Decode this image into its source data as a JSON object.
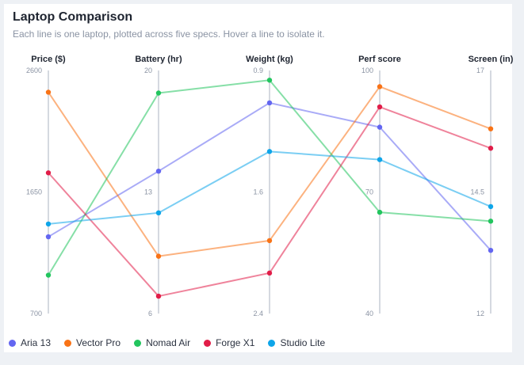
{
  "header": {
    "title": "Laptop Comparison",
    "subtitle": "Each line is one laptop, plotted across five specs. Hover a line to isolate it."
  },
  "chart_data": {
    "type": "parallel-coordinates",
    "axes": [
      {
        "label": "Price ($)",
        "range": [
          700,
          2600
        ],
        "ticks": [
          "2600",
          "1650",
          "700"
        ],
        "inverted": false
      },
      {
        "label": "Battery (hr)",
        "range": [
          6,
          20
        ],
        "ticks": [
          "20",
          "13",
          "6"
        ],
        "inverted": false
      },
      {
        "label": "Weight (kg)",
        "range": [
          2.4,
          0.9
        ],
        "ticks": [
          "0.9",
          "1.6",
          "2.4"
        ],
        "inverted": true
      },
      {
        "label": "Perf score",
        "range": [
          40,
          100
        ],
        "ticks": [
          "100",
          "70",
          "40"
        ],
        "inverted": false
      },
      {
        "label": "Screen (in)",
        "range": [
          12,
          17
        ],
        "ticks": [
          "17",
          "14.5",
          "12"
        ],
        "inverted": false
      }
    ],
    "series": [
      {
        "name": "Aria 13",
        "color": "#6366f1",
        "values": [
          1300,
          14.2,
          1.1,
          86,
          13.3
        ]
      },
      {
        "name": "Vector Pro",
        "color": "#f97316",
        "values": [
          2430,
          9.3,
          1.95,
          96,
          15.8
        ]
      },
      {
        "name": "Nomad Air",
        "color": "#22c55e",
        "values": [
          1000,
          18.7,
          0.96,
          65,
          13.9
        ]
      },
      {
        "name": "Forge X1",
        "color": "#e11d48",
        "values": [
          1800,
          7.0,
          2.15,
          91,
          15.4
        ]
      },
      {
        "name": "Studio Lite",
        "color": "#0ea5e9",
        "values": [
          1400,
          11.8,
          1.4,
          78,
          14.2
        ]
      }
    ],
    "grid": false,
    "legend": "bottom-left"
  }
}
